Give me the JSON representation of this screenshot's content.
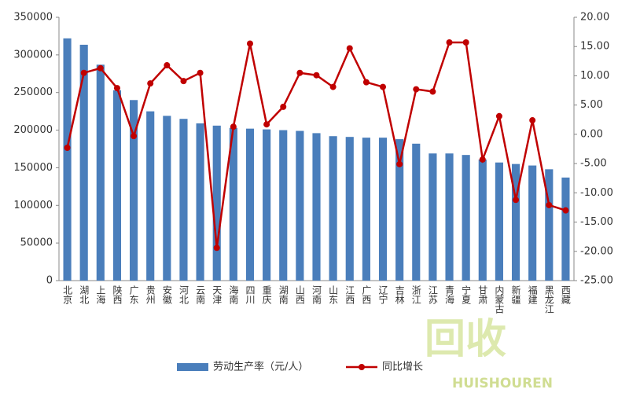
{
  "chart_data": {
    "type": "bar-line",
    "categories": [
      "北京",
      "湖北",
      "上海",
      "陕西",
      "广东",
      "贵州",
      "安徽",
      "河北",
      "云南",
      "天津",
      "海南",
      "四川",
      "重庆",
      "湖南",
      "山西",
      "河南",
      "山东",
      "江西",
      "广西",
      "辽宁",
      "吉林",
      "浙江",
      "江苏",
      "青海",
      "宁夏",
      "甘肃",
      "内蒙古",
      "新疆",
      "福建",
      "黑龙江",
      "西藏"
    ],
    "series": [
      {
        "name": "劳动生产率（元/人）",
        "color": "#4a7ebb",
        "type": "bar",
        "values": [
          322000,
          313500,
          287000,
          253000,
          240000,
          225000,
          219000,
          215000,
          209000,
          206000,
          203000,
          202000,
          201000,
          200000,
          199000,
          196000,
          192000,
          191000,
          190000,
          190000,
          188000,
          182000,
          169000,
          169000,
          167000,
          161000,
          157000,
          155000,
          153000,
          148000,
          137000
        ]
      },
      {
        "name": "同比增长",
        "color": "#c00000",
        "type": "line",
        "axis": "y2",
        "values": [
          -2.3,
          10.5,
          11.3,
          7.9,
          -0.3,
          8.7,
          11.8,
          9.1,
          10.5,
          -19.4,
          1.3,
          15.5,
          1.7,
          4.7,
          10.5,
          10.1,
          8.1,
          14.7,
          8.9,
          8.1,
          -5.1,
          7.7,
          7.3,
          15.7,
          15.7,
          -4.3,
          3.1,
          -11.2,
          2.4,
          -12.1,
          -13.0
        ]
      }
    ],
    "ylim": [
      0,
      350000
    ],
    "yticks": [
      0,
      50000,
      100000,
      150000,
      200000,
      250000,
      300000,
      350000
    ],
    "y2lim": [
      -25,
      20
    ],
    "y2ticks": [
      {
        "value": -25,
        "label": "-25.00"
      },
      {
        "value": -20,
        "label": "-20.00"
      },
      {
        "value": -15,
        "label": "-15.00"
      },
      {
        "value": -10,
        "label": "-10.00"
      },
      {
        "value": -5,
        "label": "-5.00"
      },
      {
        "value": 0,
        "label": "0.00"
      },
      {
        "value": 5,
        "label": "5.00"
      },
      {
        "value": 10,
        "label": "10.00"
      },
      {
        "value": 15,
        "label": "15.00"
      },
      {
        "value": 20,
        "label": "20.00"
      }
    ],
    "legend": "bottom",
    "watermark": {
      "text": "回收",
      "subtext": "HUISHOUREN"
    }
  }
}
